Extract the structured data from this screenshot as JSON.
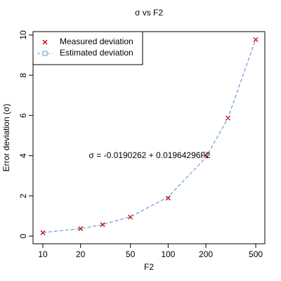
{
  "chart_data": {
    "type": "line",
    "title": "σ vs F2",
    "xlabel": "F2",
    "ylabel": "Error deviation (σ)",
    "x": [
      10,
      20,
      30,
      50,
      100,
      200,
      300,
      500
    ],
    "xscale": "log",
    "xlim": [
      8.35,
      591
    ],
    "xticks": [
      10,
      20,
      50,
      100,
      200,
      500
    ],
    "ylim": [
      -0.38,
      10.17
    ],
    "yticks": [
      0,
      2,
      4,
      6,
      8,
      10
    ],
    "legend": "topleft",
    "annotation": "σ = -0.0190262 + 0.01964296F2",
    "series": [
      {
        "name": "Measured deviation",
        "color": "#c00000",
        "marker": "x",
        "values": [
          0.17,
          0.37,
          0.57,
          0.95,
          1.89,
          4.02,
          5.87,
          9.77
        ]
      },
      {
        "name": "Estimated deviation",
        "color": "#6a9bd1",
        "line_style": "dashed",
        "values": [
          0.177,
          0.374,
          0.57,
          0.963,
          1.945,
          3.91,
          5.87,
          9.8
        ]
      }
    ]
  }
}
